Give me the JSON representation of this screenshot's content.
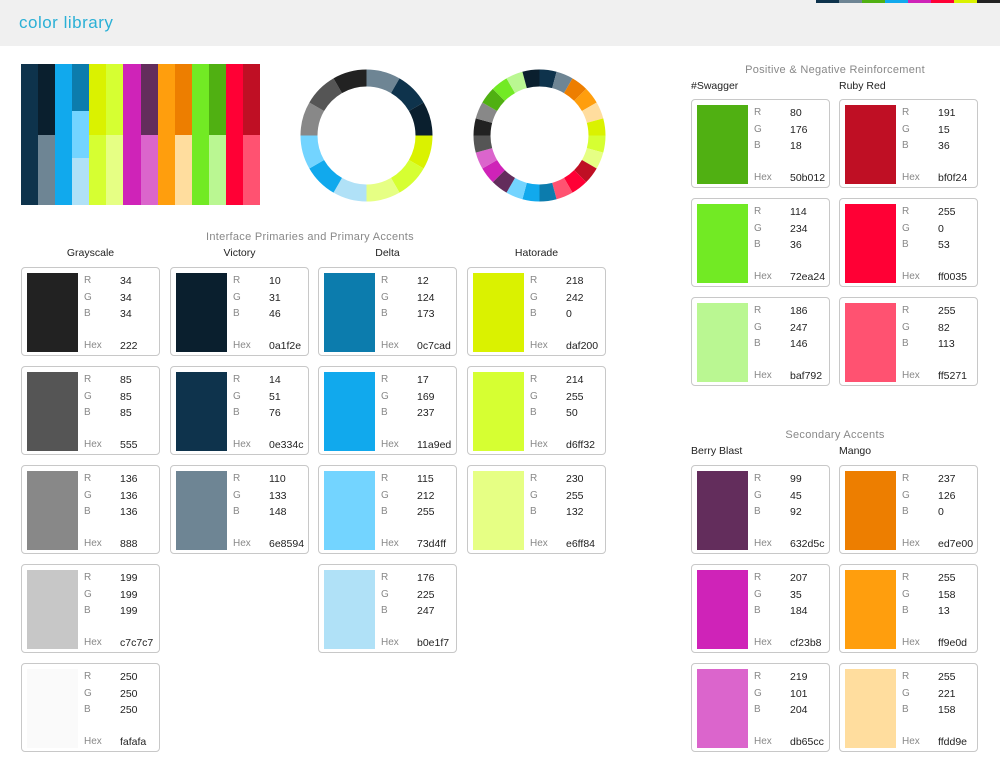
{
  "app": {
    "title": "color library"
  },
  "strip_colors": [
    "#0e334c",
    "#6e8594",
    "#50b012",
    "#11a9ed",
    "#cf23b8",
    "#ff0035",
    "#daf200",
    "#222222"
  ],
  "bars": [
    [
      "#0e334c",
      "#0e334c"
    ],
    [
      "#0a1f2e",
      "#6e8594"
    ],
    [
      "#11a9ed",
      "#11a9ed"
    ],
    [
      "#0c7cad",
      "#73d4ff",
      "#b0e1f7"
    ],
    [
      "#daf200",
      "#d6ff32"
    ],
    [
      "#d6ff32",
      "#e6ff84"
    ],
    [
      "#cf23b8",
      "#cf23b8"
    ],
    [
      "#632d5c",
      "#db65cc"
    ],
    [
      "#ff9e0d",
      "#ff9e0d"
    ],
    [
      "#ed7e00",
      "#ffdd9e"
    ],
    [
      "#72ea24",
      "#72ea24"
    ],
    [
      "#50b012",
      "#baf792"
    ],
    [
      "#ff0035",
      "#ff0035"
    ],
    [
      "#bf0f24",
      "#ff5271"
    ]
  ],
  "ring1": [
    "#6e8594",
    "#0e334c",
    "#0a1f2e",
    "#daf200",
    "#d6ff32",
    "#e6ff84",
    "#b0e1f7",
    "#11a9ed",
    "#73d4ff",
    "#888888",
    "#555555",
    "#222222"
  ],
  "ring2": [
    "#0e334c",
    "#6e8594",
    "#ed7e00",
    "#ff9e0d",
    "#ffdd9e",
    "#daf200",
    "#d6ff32",
    "#e6ff84",
    "#bf0f24",
    "#ff0035",
    "#ff5271",
    "#0c7cad",
    "#11a9ed",
    "#73d4ff",
    "#632d5c",
    "#cf23b8",
    "#db65cc",
    "#555555",
    "#222222",
    "#888888",
    "#50b012",
    "#72ea24",
    "#baf792",
    "#0a1f2e"
  ],
  "labels": {
    "r": "R",
    "g": "G",
    "b": "B",
    "hex": "Hex"
  },
  "sections": {
    "interface": "Interface Primaries and Primary Accents",
    "reinforcement": "Positive & Negative Reinforcement",
    "secondary": "Secondary Accents"
  },
  "columns": {
    "grayscale": {
      "name": "Grayscale",
      "swatches": [
        {
          "r": "34",
          "g": "34",
          "b": "34",
          "hex": "222",
          "color": "#222222"
        },
        {
          "r": "85",
          "g": "85",
          "b": "85",
          "hex": "555",
          "color": "#555555"
        },
        {
          "r": "136",
          "g": "136",
          "b": "136",
          "hex": "888",
          "color": "#888888"
        },
        {
          "r": "199",
          "g": "199",
          "b": "199",
          "hex": "c7c7c7",
          "color": "#c7c7c7"
        },
        {
          "r": "250",
          "g": "250",
          "b": "250",
          "hex": "fafafa",
          "color": "#fafafa"
        }
      ]
    },
    "victory": {
      "name": "Victory",
      "swatches": [
        {
          "r": "10",
          "g": "31",
          "b": "46",
          "hex": "0a1f2e",
          "color": "#0a1f2e"
        },
        {
          "r": "14",
          "g": "51",
          "b": "76",
          "hex": "0e334c",
          "color": "#0e334c"
        },
        {
          "r": "110",
          "g": "133",
          "b": "148",
          "hex": "6e8594",
          "color": "#6e8594"
        }
      ]
    },
    "delta": {
      "name": "Delta",
      "swatches": [
        {
          "r": "12",
          "g": "124",
          "b": "173",
          "hex": "0c7cad",
          "color": "#0c7cad"
        },
        {
          "r": "17",
          "g": "169",
          "b": "237",
          "hex": "11a9ed",
          "color": "#11a9ed"
        },
        {
          "r": "115",
          "g": "212",
          "b": "255",
          "hex": "73d4ff",
          "color": "#73d4ff"
        },
        {
          "r": "176",
          "g": "225",
          "b": "247",
          "hex": "b0e1f7",
          "color": "#b0e1f7"
        }
      ]
    },
    "hatorade": {
      "name": "Hatorade",
      "swatches": [
        {
          "r": "218",
          "g": "242",
          "b": "0",
          "hex": "daf200",
          "color": "#daf200"
        },
        {
          "r": "214",
          "g": "255",
          "b": "50",
          "hex": "d6ff32",
          "color": "#d6ff32"
        },
        {
          "r": "230",
          "g": "255",
          "b": "132",
          "hex": "e6ff84",
          "color": "#e6ff84"
        }
      ]
    },
    "swagger": {
      "name": "#Swagger",
      "swatches": [
        {
          "r": "80",
          "g": "176",
          "b": "18",
          "hex": "50b012",
          "color": "#50b012"
        },
        {
          "r": "114",
          "g": "234",
          "b": "36",
          "hex": "72ea24",
          "color": "#72ea24"
        },
        {
          "r": "186",
          "g": "247",
          "b": "146",
          "hex": "baf792",
          "color": "#baf792"
        }
      ]
    },
    "ruby_red": {
      "name": "Ruby Red",
      "swatches": [
        {
          "r": "191",
          "g": "15",
          "b": "36",
          "hex": "bf0f24",
          "color": "#bf0f24"
        },
        {
          "r": "255",
          "g": "0",
          "b": "53",
          "hex": "ff0035",
          "color": "#ff0035"
        },
        {
          "r": "255",
          "g": "82",
          "b": "113",
          "hex": "ff5271",
          "color": "#ff5271"
        }
      ]
    },
    "berry_blast": {
      "name": "Berry Blast",
      "swatches": [
        {
          "r": "99",
          "g": "45",
          "b": "92",
          "hex": "632d5c",
          "color": "#632d5c"
        },
        {
          "r": "207",
          "g": "35",
          "b": "184",
          "hex": "cf23b8",
          "color": "#cf23b8"
        },
        {
          "r": "219",
          "g": "101",
          "b": "204",
          "hex": "db65cc",
          "color": "#db65cc"
        }
      ]
    },
    "mango": {
      "name": "Mango",
      "swatches": [
        {
          "r": "237",
          "g": "126",
          "b": "0",
          "hex": "ed7e00",
          "color": "#ed7e00"
        },
        {
          "r": "255",
          "g": "158",
          "b": "13",
          "hex": "ff9e0d",
          "color": "#ff9e0d"
        },
        {
          "r": "255",
          "g": "221",
          "b": "158",
          "hex": "ffdd9e",
          "color": "#ffdd9e"
        }
      ]
    }
  }
}
